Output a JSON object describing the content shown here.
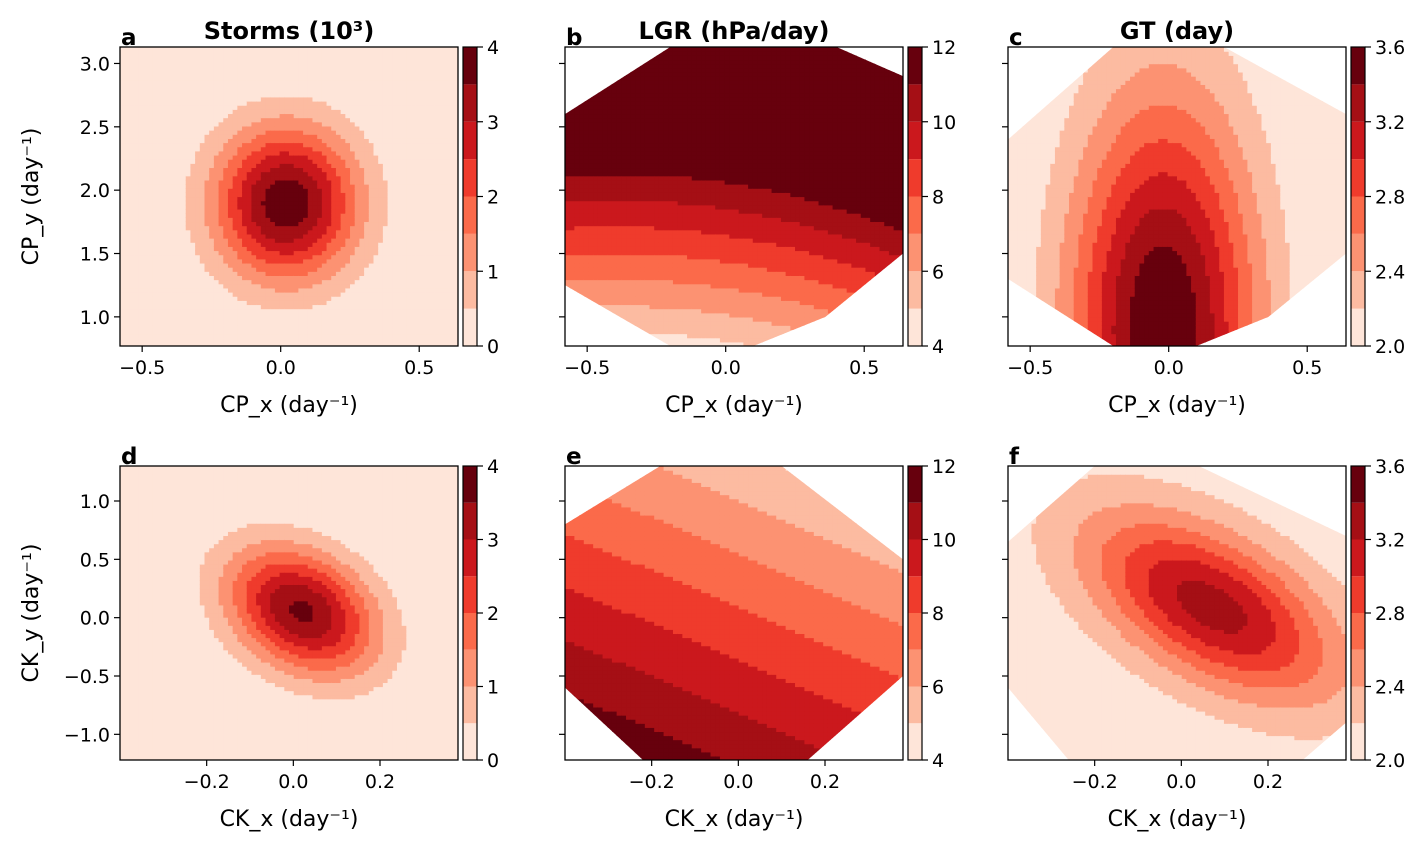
{
  "figure": {
    "description_free": true,
    "palette": [
      "#fee5d9",
      "#fcbba1",
      "#fc9272",
      "#fb6a4a",
      "#ef3b2c",
      "#cb181d",
      "#a50f15",
      "#67000d"
    ]
  },
  "chart_data": [
    {
      "id": "a",
      "panel_label": "a",
      "type": "heatmap",
      "title": "Storms (10³)",
      "xlabel": "CP_x (day⁻¹)",
      "ylabel": "CP_y (day⁻¹)",
      "xlim": [
        -0.58,
        0.64
      ],
      "ylim": [
        0.77,
        3.13
      ],
      "xticks": [
        {
          "v": -0.5,
          "label": "−0.5"
        },
        {
          "v": 0.0,
          "label": "0.0"
        },
        {
          "v": 0.5,
          "label": "0.5"
        }
      ],
      "yticks": [
        {
          "v": 1.0,
          "label": "1.0"
        },
        {
          "v": 1.5,
          "label": "1.5"
        },
        {
          "v": 2.0,
          "label": "2.0"
        },
        {
          "v": 2.5,
          "label": "2.5"
        },
        {
          "v": 3.0,
          "label": "3.0"
        }
      ],
      "colorbar": {
        "min": 0,
        "max": 4,
        "levels": [
          0,
          0.5,
          1,
          1.5,
          2,
          2.5,
          3,
          3.5,
          4
        ],
        "ticks": [
          {
            "v": 0,
            "label": "0"
          },
          {
            "v": 1,
            "label": "1"
          },
          {
            "v": 2,
            "label": "2"
          },
          {
            "v": 3,
            "label": "3"
          },
          {
            "v": 4,
            "label": "4"
          }
        ]
      },
      "field": {
        "kind": "gauss",
        "cx": 0.02,
        "cy": 1.9,
        "sx": 0.18,
        "sy": 0.42,
        "rho": 0.0,
        "amp": 3.9,
        "base": 0
      },
      "domain": "full"
    },
    {
      "id": "b",
      "panel_label": "b",
      "type": "heatmap",
      "title": "LGR (hPa/day)",
      "xlabel": "CP_x (day⁻¹)",
      "ylabel": "",
      "xlim": [
        -0.58,
        0.64
      ],
      "ylim": [
        0.77,
        3.13
      ],
      "xticks": [
        {
          "v": -0.5,
          "label": "−0.5"
        },
        {
          "v": 0.0,
          "label": "0.0"
        },
        {
          "v": 0.5,
          "label": "0.5"
        }
      ],
      "yticks": [],
      "colorbar": {
        "min": 4,
        "max": 12,
        "levels": [
          4,
          5,
          6,
          7,
          8,
          9,
          10,
          11,
          12
        ],
        "ticks": [
          {
            "v": 4,
            "label": "4"
          },
          {
            "v": 6,
            "label": "6"
          },
          {
            "v": 8,
            "label": "8"
          },
          {
            "v": 10,
            "label": "10"
          },
          {
            "v": 12,
            "label": "12"
          }
        ]
      },
      "field": {
        "kind": "linear",
        "c": 1.1,
        "ax": 1.6,
        "ay": 4.8,
        "qx": 2.0,
        "qy": 0,
        "qxy": 0
      },
      "domain": "octagon",
      "clip": [
        [
          -0.58,
          2.6
        ],
        [
          -0.2,
          3.13
        ],
        [
          0.4,
          3.13
        ],
        [
          0.64,
          2.9
        ],
        [
          0.64,
          1.5
        ],
        [
          0.36,
          1.0
        ],
        [
          0.1,
          0.77
        ],
        [
          -0.2,
          0.77
        ],
        [
          -0.58,
          1.25
        ]
      ]
    },
    {
      "id": "c",
      "panel_label": "c",
      "type": "heatmap",
      "title": "GT (day)",
      "xlabel": "CP_x (day⁻¹)",
      "ylabel": "",
      "xlim": [
        -0.58,
        0.64
      ],
      "ylim": [
        0.77,
        3.13
      ],
      "xticks": [
        {
          "v": -0.5,
          "label": "−0.5"
        },
        {
          "v": 0.0,
          "label": "0.0"
        },
        {
          "v": 0.5,
          "label": "0.5"
        }
      ],
      "yticks": [],
      "colorbar": {
        "min": 2.0,
        "max": 3.6,
        "levels": [
          2.0,
          2.2,
          2.4,
          2.6,
          2.8,
          3.0,
          3.2,
          3.4,
          3.6
        ],
        "ticks": [
          {
            "v": 2.0,
            "label": "2.0"
          },
          {
            "v": 2.4,
            "label": "2.4"
          },
          {
            "v": 2.8,
            "label": "2.8"
          },
          {
            "v": 3.2,
            "label": "3.2"
          },
          {
            "v": 3.6,
            "label": "3.6"
          }
        ]
      },
      "field": {
        "kind": "gauss",
        "cx": -0.02,
        "cy": 0.9,
        "sx": 0.24,
        "sy": 1.3,
        "rho": 0.0,
        "amp": 1.65,
        "base": 1.95
      },
      "domain": "octagon",
      "clip": [
        [
          -0.58,
          2.4
        ],
        [
          -0.2,
          3.13
        ],
        [
          0.2,
          3.13
        ],
        [
          0.64,
          2.6
        ],
        [
          0.64,
          1.5
        ],
        [
          0.36,
          1.0
        ],
        [
          0.1,
          0.77
        ],
        [
          -0.2,
          0.77
        ],
        [
          -0.58,
          1.3
        ]
      ]
    },
    {
      "id": "d",
      "panel_label": "d",
      "type": "heatmap",
      "title": "",
      "xlabel": "CK_x (day⁻¹)",
      "ylabel": "CK_y (day⁻¹)",
      "xlim": [
        -0.4,
        0.38
      ],
      "ylim": [
        -1.22,
        1.3
      ],
      "xticks": [
        {
          "v": -0.2,
          "label": "−0.2"
        },
        {
          "v": 0.0,
          "label": "0.0"
        },
        {
          "v": 0.2,
          "label": "0.2"
        }
      ],
      "yticks": [
        {
          "v": -1.0,
          "label": "−1.0"
        },
        {
          "v": -0.5,
          "label": "−0.5"
        },
        {
          "v": 0.0,
          "label": "0.0"
        },
        {
          "v": 0.5,
          "label": "0.5"
        },
        {
          "v": 1.0,
          "label": "1.0"
        }
      ],
      "colorbar": {
        "min": 0,
        "max": 4,
        "levels": [
          0,
          0.5,
          1,
          1.5,
          2,
          2.5,
          3,
          3.5,
          4
        ],
        "ticks": [
          {
            "v": 0,
            "label": "0"
          },
          {
            "v": 1,
            "label": "1"
          },
          {
            "v": 2,
            "label": "2"
          },
          {
            "v": 3,
            "label": "3"
          },
          {
            "v": 4,
            "label": "4"
          }
        ]
      },
      "field": {
        "kind": "gauss",
        "cx": 0.02,
        "cy": 0.06,
        "sx": 0.12,
        "sy": 0.38,
        "rho": -0.3,
        "amp": 3.6,
        "base": 0
      },
      "domain": "full"
    },
    {
      "id": "e",
      "panel_label": "e",
      "type": "heatmap",
      "title": "",
      "xlabel": "CK_x (day⁻¹)",
      "ylabel": "",
      "xlim": [
        -0.4,
        0.38
      ],
      "ylim": [
        -1.22,
        1.3
      ],
      "xticks": [
        {
          "v": -0.2,
          "label": "−0.2"
        },
        {
          "v": 0.0,
          "label": "0.0"
        },
        {
          "v": 0.2,
          "label": "0.2"
        }
      ],
      "yticks": [],
      "colorbar": {
        "min": 4,
        "max": 12,
        "levels": [
          4,
          5,
          6,
          7,
          8,
          9,
          10,
          11,
          12
        ],
        "ticks": [
          {
            "v": 4,
            "label": "4"
          },
          {
            "v": 6,
            "label": "6"
          },
          {
            "v": 8,
            "label": "8"
          },
          {
            "v": 10,
            "label": "10"
          },
          {
            "v": 12,
            "label": "12"
          }
        ]
      },
      "field": {
        "kind": "linear",
        "c": 8.2,
        "ax": -3.5,
        "ay": -2.2,
        "qx": 0,
        "qy": 0,
        "qxy": 0
      },
      "domain": "octagon",
      "clip": [
        [
          -0.4,
          0.8
        ],
        [
          -0.18,
          1.3
        ],
        [
          0.1,
          1.3
        ],
        [
          0.38,
          0.5
        ],
        [
          0.38,
          -0.5
        ],
        [
          0.16,
          -1.22
        ],
        [
          -0.22,
          -1.22
        ],
        [
          -0.4,
          -0.6
        ]
      ]
    },
    {
      "id": "f",
      "panel_label": "f",
      "type": "heatmap",
      "title": "",
      "xlabel": "CK_x (day⁻¹)",
      "ylabel": "",
      "xlim": [
        -0.4,
        0.38
      ],
      "ylim": [
        -1.22,
        1.3
      ],
      "xticks": [
        {
          "v": -0.2,
          "label": "−0.2"
        },
        {
          "v": 0.0,
          "label": "0.0"
        },
        {
          "v": 0.2,
          "label": "0.2"
        }
      ],
      "yticks": [],
      "colorbar": {
        "min": 2.0,
        "max": 3.6,
        "levels": [
          2.0,
          2.2,
          2.4,
          2.6,
          2.8,
          3.0,
          3.2,
          3.4,
          3.6
        ],
        "ticks": [
          {
            "v": 2.0,
            "label": "2.0"
          },
          {
            "v": 2.4,
            "label": "2.4"
          },
          {
            "v": 2.8,
            "label": "2.8"
          },
          {
            "v": 3.2,
            "label": "3.2"
          },
          {
            "v": 3.6,
            "label": "3.6"
          }
        ]
      },
      "field": {
        "kind": "gauss",
        "cx": 0.07,
        "cy": 0.1,
        "sx": 0.2,
        "sy": 0.55,
        "rho": -0.55,
        "amp": 1.25,
        "base": 2.05
      },
      "domain": "octagon",
      "clip": [
        [
          -0.4,
          0.65
        ],
        [
          -0.2,
          1.3
        ],
        [
          0.04,
          1.3
        ],
        [
          0.38,
          0.7
        ],
        [
          0.38,
          -0.9
        ],
        [
          0.28,
          -1.22
        ],
        [
          -0.26,
          -1.22
        ],
        [
          -0.4,
          -0.6
        ]
      ]
    }
  ]
}
